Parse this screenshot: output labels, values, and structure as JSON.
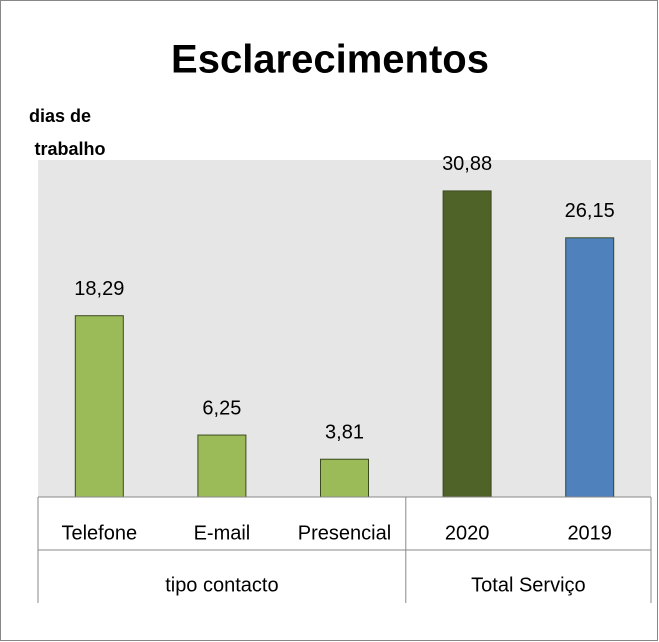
{
  "chart_data": {
    "type": "bar",
    "title": "Esclarecimentos",
    "ylabel": [
      "dias de",
      "trabalho"
    ],
    "categories": [
      "Telefone",
      "E-mail",
      "Presencial",
      "2020",
      "2019"
    ],
    "values": [
      18.29,
      6.25,
      3.81,
      30.88,
      26.15
    ],
    "value_labels": [
      "18,29",
      "6,25",
      "3,81",
      "30,88",
      "26,15"
    ],
    "colors": [
      "#9bbb59",
      "#9bbb59",
      "#9bbb59",
      "#4f6228",
      "#4f81bd"
    ],
    "groups": [
      {
        "name": "tipo contacto",
        "count": 3
      },
      {
        "name": "Total Serviço",
        "count": 2
      }
    ],
    "ylim": [
      0,
      34
    ]
  }
}
